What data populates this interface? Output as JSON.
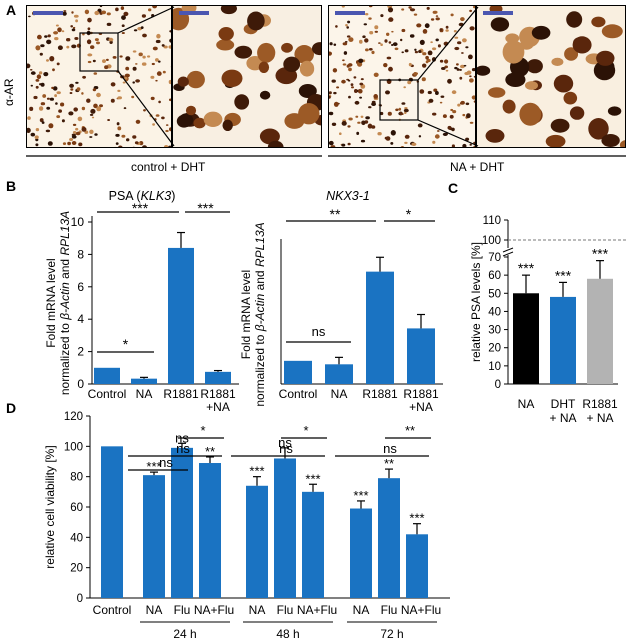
{
  "panel_letters": {
    "a": "A",
    "b": "B",
    "c": "C",
    "d": "D"
  },
  "panel_a": {
    "side_label": "α-AR",
    "groups": [
      "control + DHT",
      "NA + DHT"
    ]
  },
  "chart_data": [
    {
      "id": "psa",
      "type": "bar",
      "title_prefix": "PSA (",
      "title_italic": "KLK3",
      "title_suffix": ")",
      "ylabel_line1": "Fold mRNA level",
      "ylabel_line2_parts": [
        "normalized to ",
        "β-Actin",
        " and ",
        "RPL13A"
      ],
      "categories": [
        "Control",
        "NA",
        "R1881",
        "R1881\n+NA"
      ],
      "values": [
        1.0,
        0.33,
        8.4,
        0.75
      ],
      "errors": [
        0.0,
        0.08,
        0.95,
        0.08
      ],
      "ylim": [
        0,
        10
      ],
      "yticks": [
        0,
        2,
        4,
        6,
        8,
        10
      ],
      "significance": [
        {
          "from": 0,
          "to": 1,
          "label": "*"
        },
        {
          "from": 0,
          "to": 2,
          "label": "***"
        },
        {
          "from": 2,
          "to": 3,
          "label": "***"
        }
      ],
      "bar_color": "#1a73c2"
    },
    {
      "id": "nkx",
      "type": "bar",
      "title_prefix": "",
      "title_italic": "NKX3-1",
      "title_suffix": "",
      "ylabel_line1": "Fold mRNA level",
      "ylabel_line2_parts": [
        "normalized to ",
        "β-Actin",
        " and ",
        "RPL13A"
      ],
      "categories": [
        "Control",
        "NA",
        "R1881",
        "R1881\n+NA"
      ],
      "values": [
        1.0,
        0.85,
        4.85,
        2.4
      ],
      "errors": [
        0.0,
        0.3,
        0.62,
        0.6
      ],
      "ylim": [
        0,
        6
      ],
      "yticks": [],
      "significance": [
        {
          "from": 0,
          "to": 1,
          "label": "ns"
        },
        {
          "from": 0,
          "to": 2,
          "label": "**"
        },
        {
          "from": 2,
          "to": 3,
          "label": "*"
        }
      ],
      "bar_color": "#1a73c2"
    },
    {
      "id": "psa_levels",
      "type": "bar",
      "ylabel": "relative PSA levels [%]",
      "categories": [
        "NA",
        "DHT\n+ NA",
        "R1881\n+ NA"
      ],
      "values": [
        50,
        48,
        58
      ],
      "errors": [
        10,
        8,
        10
      ],
      "colors": [
        "#000000",
        "#1a73c2",
        "#b3b3b3"
      ],
      "stars": [
        "***",
        "***",
        "***"
      ],
      "ylim": [
        0,
        110
      ],
      "yticks_lower": [
        0,
        10,
        20,
        30,
        40,
        50,
        60,
        70
      ],
      "yticks_upper": [
        100,
        110
      ],
      "axis_break": [
        70,
        100
      ],
      "reference_line": 100
    },
    {
      "id": "viability",
      "type": "bar",
      "ylabel": "relative cell viability [%]",
      "ylim": [
        0,
        120
      ],
      "yticks": [
        0,
        20,
        40,
        60,
        80,
        100,
        120
      ],
      "control": {
        "label": "Control",
        "value": 100
      },
      "groups": [
        {
          "label": "24 h",
          "categories": [
            "NA",
            "Flu",
            "NA+Flu"
          ],
          "values": [
            81,
            99,
            89
          ],
          "errors": [
            2,
            3,
            4
          ],
          "stars": [
            "***",
            "ns",
            "**"
          ],
          "brackets": [
            {
              "from": 0,
              "to": 1,
              "label": "ns"
            },
            {
              "from": 0,
              "to": 2,
              "label": "ns"
            },
            {
              "from": 1,
              "to": 2,
              "label": "*"
            }
          ]
        },
        {
          "label": "48 h",
          "categories": [
            "NA",
            "Flu",
            "NA+Flu"
          ],
          "values": [
            74,
            92,
            70
          ],
          "errors": [
            6,
            7,
            5
          ],
          "stars": [
            "***",
            "ns",
            "***"
          ],
          "brackets": [
            {
              "from": 0,
              "to": 2,
              "label": "ns"
            },
            {
              "from": 1,
              "to": 2,
              "label": "*"
            }
          ]
        },
        {
          "label": "72 h",
          "categories": [
            "NA",
            "Flu",
            "NA+Flu"
          ],
          "values": [
            59,
            79,
            42
          ],
          "errors": [
            5,
            6,
            7
          ],
          "stars": [
            "***",
            "**",
            "***"
          ],
          "brackets": [
            {
              "from": 0,
              "to": 2,
              "label": "ns"
            },
            {
              "from": 1,
              "to": 2,
              "label": "**"
            }
          ]
        }
      ],
      "bar_color": "#1a73c2"
    }
  ]
}
